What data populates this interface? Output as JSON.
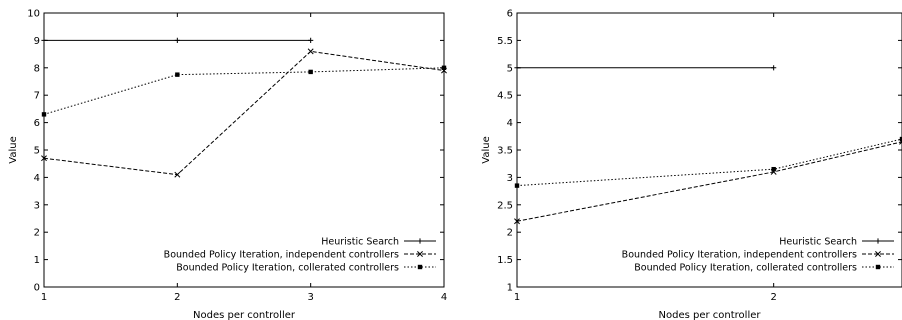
{
  "chart_data": [
    {
      "type": "line",
      "title": "",
      "xlabel": "Nodes per controller",
      "ylabel": "Value",
      "xlim": [
        1,
        4
      ],
      "ylim": [
        0,
        10
      ],
      "xticks": [
        "1",
        "2",
        "3",
        "4"
      ],
      "yticks": [
        "0",
        "1",
        "2",
        "3",
        "4",
        "5",
        "6",
        "7",
        "8",
        "9",
        "10"
      ],
      "grid": false,
      "legend_position": "bottom-right",
      "series": [
        {
          "name": "Heuristic Search",
          "style": "solid",
          "marker": "plus",
          "x": [
            1,
            2,
            3
          ],
          "y": [
            9,
            9,
            9
          ]
        },
        {
          "name": "Bounded Policy Iteration, independent controllers",
          "style": "dashed",
          "marker": "cross",
          "x": [
            1,
            2,
            3,
            4
          ],
          "y": [
            4.7,
            4.1,
            8.6,
            7.9
          ]
        },
        {
          "name": "Bounded Policy Iteration, collerated controllers",
          "style": "dotted",
          "marker": "square",
          "x": [
            1,
            2,
            3,
            4
          ],
          "y": [
            6.3,
            7.75,
            7.85,
            8.0
          ]
        }
      ]
    },
    {
      "type": "line",
      "title": "",
      "xlabel": "Nodes per controller",
      "ylabel": "Value",
      "xlim": [
        1,
        2.5
      ],
      "ylim": [
        1,
        6
      ],
      "xticks": [
        "1",
        "2"
      ],
      "yticks": [
        "1",
        "1.5",
        "2",
        "2.5",
        "3",
        "3.5",
        "4",
        "4.5",
        "5",
        "5.5",
        "6"
      ],
      "grid": false,
      "legend_position": "bottom-right",
      "series": [
        {
          "name": "Heuristic Search",
          "style": "solid",
          "marker": "plus",
          "x": [
            1,
            2
          ],
          "y": [
            5,
            5
          ]
        },
        {
          "name": "Bounded Policy Iteration, independent controllers",
          "style": "dashed",
          "marker": "cross",
          "x": [
            1,
            2,
            2.5
          ],
          "y": [
            2.2,
            3.1,
            3.65
          ]
        },
        {
          "name": "Bounded Policy Iteration, collerated controllers",
          "style": "dotted",
          "marker": "square",
          "x": [
            1,
            2,
            2.5
          ],
          "y": [
            2.85,
            3.15,
            3.7
          ]
        }
      ]
    }
  ]
}
